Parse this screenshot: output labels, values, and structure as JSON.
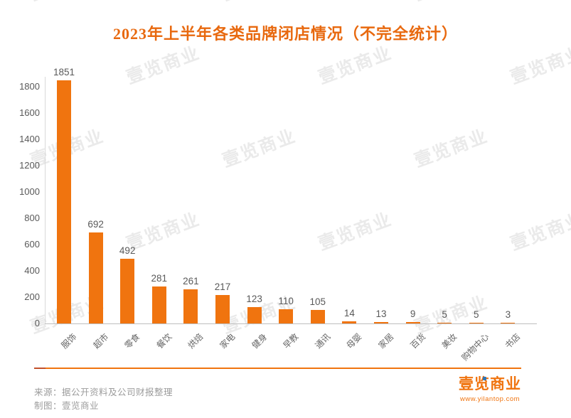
{
  "title": "2023年上半年各类品牌闭店情况（不完全统计）",
  "chart_data": {
    "type": "bar",
    "title": "2023年上半年各类品牌闭店情况（不完全统计）",
    "categories": [
      "服饰",
      "超市",
      "零食",
      "餐饮",
      "烘焙",
      "家电",
      "健身",
      "早教",
      "通讯",
      "母婴",
      "家居",
      "百货",
      "美妆",
      "购物中心",
      "书店"
    ],
    "values": [
      1851,
      692,
      492,
      281,
      261,
      217,
      123,
      110,
      105,
      14,
      13,
      9,
      5,
      5,
      3
    ],
    "xlabel": "",
    "ylabel": "",
    "ylim": [
      0,
      1800
    ],
    "ytick_step": 200,
    "grid": false,
    "legend": "none",
    "bar_color": "#F0740F",
    "value_label_color": "#595959",
    "tick_label_color": "#595959"
  },
  "footer": {
    "source_line": "来源：据公开资料及公司财报整理",
    "credit_line": "制图：壹览商业"
  },
  "logo": {
    "name": "壹览商业",
    "url": "www.yilantop.com"
  },
  "watermark": {
    "text": "壹览商业"
  },
  "colors": {
    "accent": "#F0740F",
    "title": "#E8690F",
    "divider": "#F0740F",
    "divider_cap": "#C2502B",
    "logo_accent": "#2E75B6"
  }
}
